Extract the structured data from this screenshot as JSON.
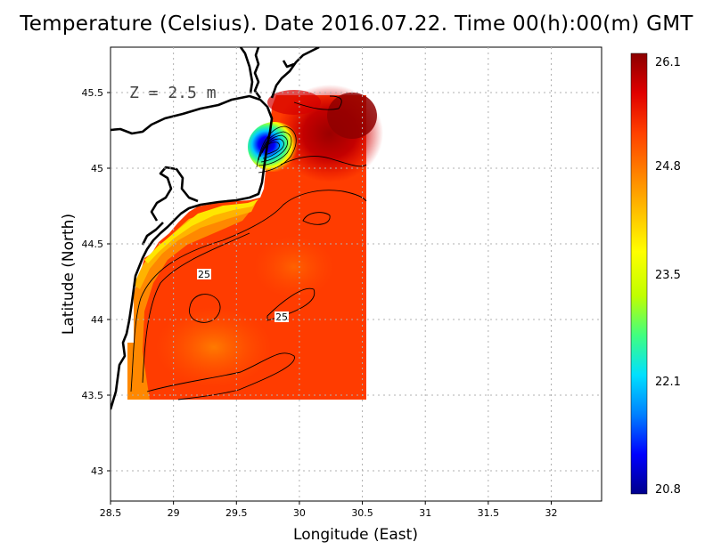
{
  "title": "Temperature (Celsius). Date 2016.07.22. Time 00(h):00(m)  GMT",
  "depth_label": "Z = 2.5 m",
  "chart_data": {
    "type": "heatmap",
    "variable": "Temperature (Celsius)",
    "date": "2016.07.22",
    "time": "00(h):00(m) GMT",
    "depth": "Z = 2.5 m",
    "xlabel": "Longitude (East)",
    "ylabel": "Latitude (North)",
    "xlim": [
      28.5,
      32.4
    ],
    "ylim": [
      42.8,
      45.8
    ],
    "x_ticks": [
      "28.5",
      "29",
      "29.5",
      "30",
      "30.5",
      "31",
      "31.5",
      "32"
    ],
    "y_ticks": [
      "43",
      "43.5",
      "44",
      "44.5",
      "45",
      "45.5"
    ],
    "grid": true,
    "data_extent": {
      "lon": [
        28.63,
        30.53
      ],
      "lat": [
        43.48,
        45.5
      ]
    },
    "colorbar": {
      "min": 20.8,
      "max": 26.1,
      "tick_labels": [
        "26.1",
        "24.8",
        "23.5",
        "22.1",
        "20.8"
      ],
      "colors": [
        "#00008b",
        "#0000ff",
        "#0080ff",
        "#00e0ff",
        "#40ff80",
        "#c0ff00",
        "#ffff00",
        "#ffc000",
        "#ff8000",
        "#ff4000",
        "#e00000",
        "#8b0000"
      ]
    },
    "contour_labels": [
      "25",
      "25"
    ]
  }
}
